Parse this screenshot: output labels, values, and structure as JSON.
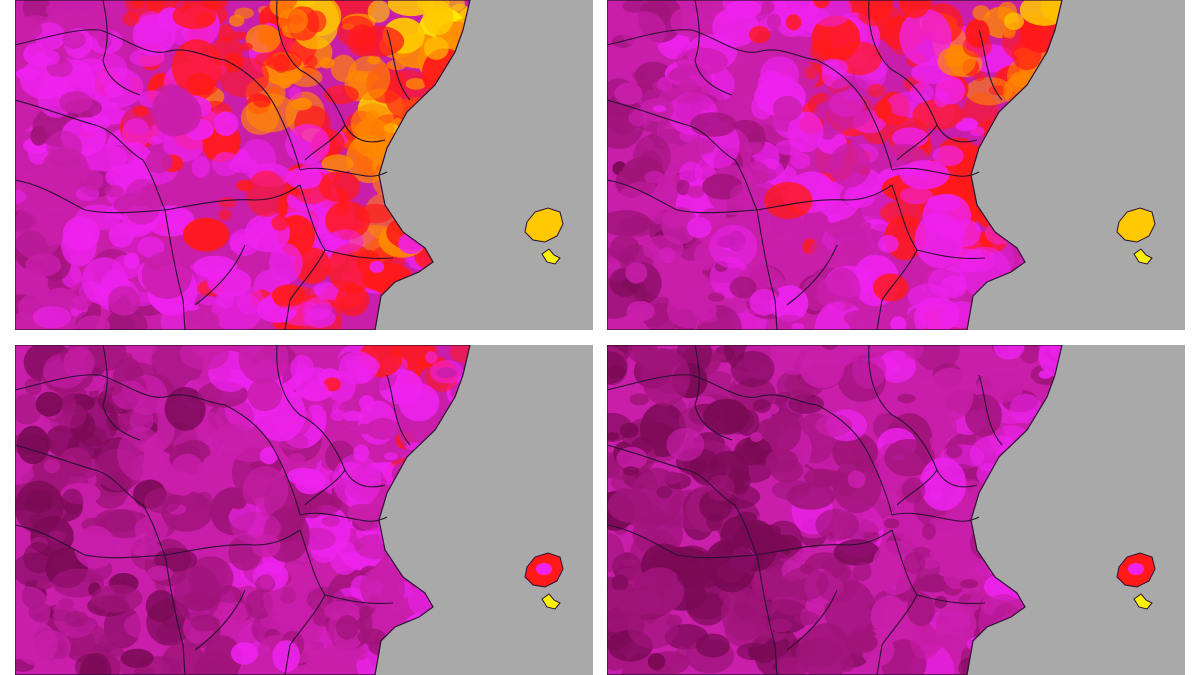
{
  "colors": {
    "sea": "#a9a9a9",
    "border": "#2a1030",
    "temperature_scale": [
      "#7a0a55",
      "#a0147a",
      "#c81eaa",
      "#ee22ee",
      "#ff1a1a",
      "#ff8a00",
      "#ffc800",
      "#fff200"
    ]
  },
  "panels": [
    {
      "position": "top-left",
      "heat_level": 0.85
    },
    {
      "position": "top-right",
      "heat_level": 0.65
    },
    {
      "position": "bottom-left",
      "heat_level": 0.35
    },
    {
      "position": "bottom-right",
      "heat_level": 0.2
    }
  ]
}
